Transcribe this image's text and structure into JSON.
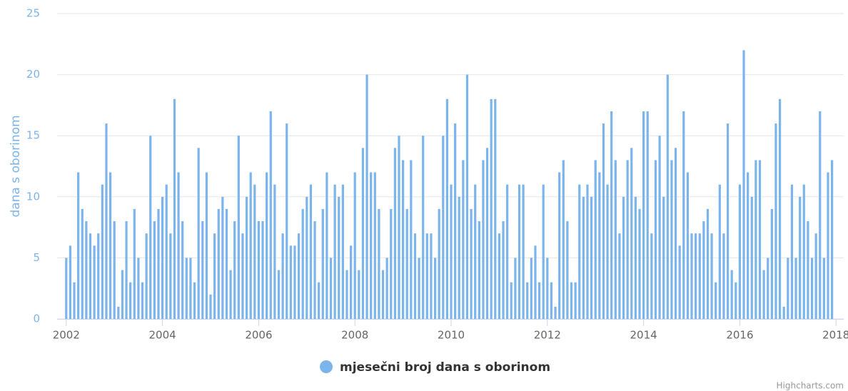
{
  "chart_data": {
    "type": "bar",
    "y_axis_label": "dana s oborinom",
    "credits": "Highcharts.com",
    "x": [
      "2002-01",
      "2002-02",
      "2002-03",
      "2002-04",
      "2002-05",
      "2002-06",
      "2002-07",
      "2002-08",
      "2002-09",
      "2002-10",
      "2002-11",
      "2002-12",
      "2003-01",
      "2003-02",
      "2003-03",
      "2003-04",
      "2003-05",
      "2003-06",
      "2003-07",
      "2003-08",
      "2003-09",
      "2003-10",
      "2003-11",
      "2003-12",
      "2004-01",
      "2004-02",
      "2004-03",
      "2004-04",
      "2004-05",
      "2004-06",
      "2004-07",
      "2004-08",
      "2004-09",
      "2004-10",
      "2004-11",
      "2004-12",
      "2005-01",
      "2005-02",
      "2005-03",
      "2005-04",
      "2005-05",
      "2005-06",
      "2005-07",
      "2005-08",
      "2005-09",
      "2005-10",
      "2005-11",
      "2005-12",
      "2006-01",
      "2006-02",
      "2006-03",
      "2006-04",
      "2006-05",
      "2006-06",
      "2006-07",
      "2006-08",
      "2006-09",
      "2006-10",
      "2006-11",
      "2006-12",
      "2007-01",
      "2007-02",
      "2007-03",
      "2007-04",
      "2007-05",
      "2007-06",
      "2007-07",
      "2007-08",
      "2007-09",
      "2007-10",
      "2007-11",
      "2007-12",
      "2008-01",
      "2008-02",
      "2008-03",
      "2008-04",
      "2008-05",
      "2008-06",
      "2008-07",
      "2008-08",
      "2008-09",
      "2008-10",
      "2008-11",
      "2008-12",
      "2009-01",
      "2009-02",
      "2009-03",
      "2009-04",
      "2009-05",
      "2009-06",
      "2009-07",
      "2009-08",
      "2009-09",
      "2009-10",
      "2009-11",
      "2009-12",
      "2010-01",
      "2010-02",
      "2010-03",
      "2010-04",
      "2010-05",
      "2010-06",
      "2010-07",
      "2010-08",
      "2010-09",
      "2010-10",
      "2010-11",
      "2010-12",
      "2011-01",
      "2011-02",
      "2011-03",
      "2011-04",
      "2011-05",
      "2011-06",
      "2011-07",
      "2011-08",
      "2011-09",
      "2011-10",
      "2011-11",
      "2011-12",
      "2012-01",
      "2012-02",
      "2012-03",
      "2012-04",
      "2012-05",
      "2012-06",
      "2012-07",
      "2012-08",
      "2012-09",
      "2012-10",
      "2012-11",
      "2012-12",
      "2013-01",
      "2013-02",
      "2013-03",
      "2013-04",
      "2013-05",
      "2013-06",
      "2013-07",
      "2013-08",
      "2013-09",
      "2013-10",
      "2013-11",
      "2013-12",
      "2014-01",
      "2014-02",
      "2014-03",
      "2014-04",
      "2014-05",
      "2014-06",
      "2014-07",
      "2014-08",
      "2014-09",
      "2014-10",
      "2014-11",
      "2014-12",
      "2015-01",
      "2015-02",
      "2015-03",
      "2015-04",
      "2015-05",
      "2015-06",
      "2015-07",
      "2015-08",
      "2015-09",
      "2015-10",
      "2015-11",
      "2015-12",
      "2016-01",
      "2016-02",
      "2016-03",
      "2016-04",
      "2016-05",
      "2016-06",
      "2016-07",
      "2016-08",
      "2016-09",
      "2016-10",
      "2016-11",
      "2016-12",
      "2017-01",
      "2017-02",
      "2017-03",
      "2017-04",
      "2017-05",
      "2017-06",
      "2017-07",
      "2017-08",
      "2017-09",
      "2017-10",
      "2017-11",
      "2017-12"
    ],
    "series": [
      {
        "name": "mjesečni broj dana s oborinom",
        "color": "#7cb5ec",
        "values": [
          5,
          6,
          3,
          12,
          9,
          8,
          7,
          6,
          7,
          11,
          16,
          12,
          8,
          1,
          4,
          8,
          3,
          9,
          5,
          3,
          7,
          15,
          8,
          9,
          10,
          11,
          7,
          18,
          12,
          8,
          5,
          5,
          3,
          14,
          8,
          12,
          2,
          7,
          9,
          10,
          9,
          4,
          8,
          15,
          7,
          10,
          12,
          11,
          8,
          8,
          12,
          17,
          11,
          4,
          7,
          16,
          6,
          6,
          7,
          9,
          10,
          11,
          8,
          3,
          9,
          12,
          5,
          11,
          10,
          11,
          4,
          6,
          12,
          4,
          14,
          20,
          12,
          12,
          9,
          4,
          5,
          9,
          14,
          15,
          13,
          9,
          13,
          7,
          5,
          15,
          7,
          7,
          5,
          9,
          15,
          18,
          11,
          16,
          10,
          13,
          20,
          9,
          11,
          8,
          13,
          14,
          18,
          18,
          7,
          8,
          11,
          3,
          5,
          11,
          11,
          3,
          5,
          6,
          3,
          11,
          5,
          3,
          1,
          12,
          13,
          8,
          3,
          3,
          11,
          10,
          11,
          10,
          13,
          12,
          16,
          11,
          17,
          13,
          7,
          10,
          13,
          14,
          10,
          9,
          17,
          17,
          7,
          13,
          15,
          10,
          20,
          13,
          14,
          6,
          17,
          12,
          7,
          7,
          7,
          8,
          9,
          7,
          3,
          11,
          7,
          16,
          4,
          3,
          11,
          22,
          12,
          10,
          13,
          13,
          4,
          5,
          9,
          16,
          18,
          1,
          5,
          11,
          5,
          10,
          11,
          8,
          5,
          7,
          17,
          5,
          12,
          13
        ]
      }
    ],
    "xlim": [
      2001.81,
      2018.16
    ],
    "xticks": [
      2002,
      2004,
      2006,
      2008,
      2010,
      2012,
      2014,
      2016,
      2018
    ],
    "ylim": [
      0,
      25
    ],
    "yticks": [
      0,
      5,
      10,
      15,
      20,
      25
    ],
    "grid": true
  }
}
